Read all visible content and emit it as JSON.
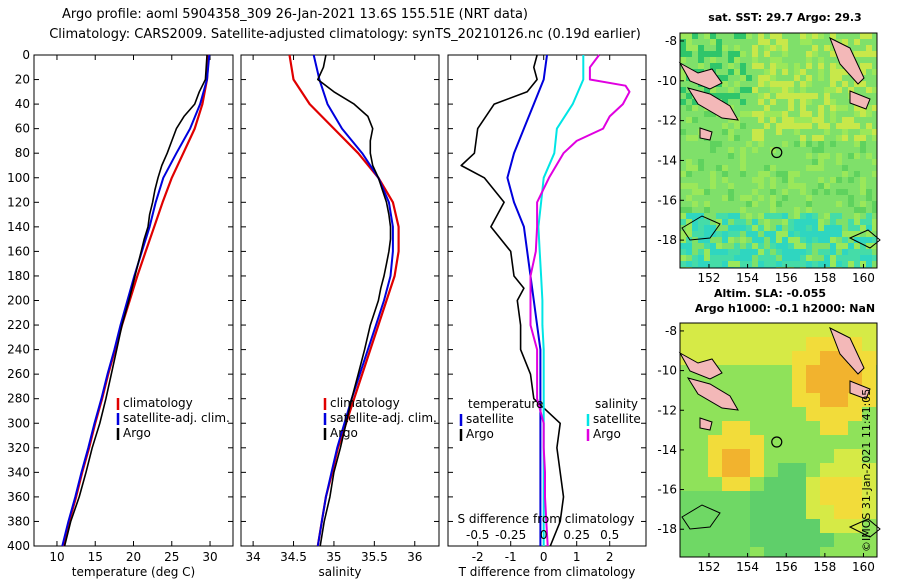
{
  "header": {
    "line1": "Argo profile: aoml 5904358_309 26-Jan-2021 13.6S 155.51E (NRT data)",
    "line2": "Climatology: CARS2009. Satellite-adjusted climatology: synTS_20210126.nc (0.19d earlier)"
  },
  "colors": {
    "climatology": "#e00000",
    "satellite": "#0000dd",
    "argo": "#000000",
    "sat_salinity": "#00e5e5",
    "argo_salinity": "#e000e0"
  },
  "chart_data": [
    {
      "type": "line",
      "name": "temperature",
      "xlabel": "temperature (deg C)",
      "ylabel": "depth",
      "xlim": [
        7,
        33
      ],
      "ylim": [
        0,
        400
      ],
      "xticks": [
        10,
        15,
        20,
        25,
        30
      ],
      "yticks": [
        0,
        20,
        40,
        60,
        80,
        100,
        120,
        140,
        160,
        180,
        200,
        220,
        240,
        260,
        280,
        300,
        320,
        340,
        360,
        380,
        400
      ],
      "legend": [
        "climatology",
        "satellite-adj. clim.",
        "Argo"
      ],
      "series": [
        {
          "name": "climatology",
          "depth": [
            0,
            20,
            40,
            60,
            80,
            100,
            120,
            140,
            160,
            180,
            200,
            220,
            240,
            260,
            280,
            300,
            320,
            340,
            360,
            380,
            400
          ],
          "values": [
            29.8,
            29.6,
            29.0,
            28.0,
            26.5,
            25.0,
            23.8,
            22.7,
            21.6,
            20.5,
            19.5,
            18.5,
            17.6,
            16.7,
            15.9,
            15.0,
            14.2,
            13.3,
            12.5,
            11.6,
            10.8
          ]
        },
        {
          "name": "satellite-adj. clim.",
          "depth": [
            0,
            20,
            40,
            60,
            80,
            100,
            120,
            140,
            160,
            180,
            200,
            220,
            240,
            260,
            280,
            300,
            320,
            340,
            360,
            380,
            400
          ],
          "values": [
            29.9,
            29.6,
            28.7,
            27.4,
            25.6,
            23.9,
            22.9,
            22.1,
            21.1,
            20.1,
            19.2,
            18.3,
            17.5,
            16.6,
            15.8,
            14.9,
            14.1,
            13.2,
            12.4,
            11.5,
            10.7
          ]
        },
        {
          "name": "Argo",
          "depth": [
            0,
            10,
            20,
            30,
            40,
            50,
            60,
            70,
            80,
            90,
            100,
            110,
            120,
            130,
            140,
            150,
            160,
            170,
            180,
            190,
            200,
            220,
            240,
            260,
            280,
            300,
            320,
            340,
            360,
            380,
            400
          ],
          "values": [
            29.6,
            29.5,
            29.4,
            28.6,
            28.0,
            26.6,
            25.6,
            25.0,
            24.4,
            23.7,
            23.2,
            22.8,
            22.5,
            22.1,
            21.9,
            21.4,
            21.0,
            20.6,
            20.2,
            19.8,
            19.4,
            18.5,
            17.8,
            17.1,
            16.4,
            15.6,
            14.6,
            13.8,
            12.9,
            11.8,
            11.0
          ]
        }
      ]
    },
    {
      "type": "line",
      "name": "salinity",
      "xlabel": "salinity",
      "ylabel": "depth",
      "xlim": [
        33.85,
        36.3
      ],
      "ylim": [
        0,
        400
      ],
      "xticks": [
        34,
        34.5,
        35,
        35.5,
        36
      ],
      "xtick_labels": [
        "34",
        "34.5",
        "35",
        "35.5",
        "36"
      ],
      "legend": [
        "climatology",
        "satellite-adj. clim.",
        "Argo"
      ],
      "series": [
        {
          "name": "climatology",
          "depth": [
            0,
            20,
            40,
            60,
            80,
            100,
            120,
            140,
            160,
            180,
            200,
            220,
            240,
            260,
            280,
            300,
            320,
            340,
            360,
            380,
            400
          ],
          "values": [
            34.45,
            34.5,
            34.7,
            35.0,
            35.3,
            35.55,
            35.73,
            35.8,
            35.8,
            35.75,
            35.65,
            35.55,
            35.45,
            35.35,
            35.25,
            35.15,
            35.05,
            34.98,
            34.9,
            34.85,
            34.8
          ]
        },
        {
          "name": "satellite-adj. clim.",
          "depth": [
            0,
            20,
            40,
            60,
            80,
            100,
            120,
            140,
            160,
            180,
            200,
            220,
            240,
            260,
            280,
            300,
            320,
            340,
            360,
            380,
            400
          ],
          "values": [
            34.75,
            34.82,
            34.92,
            35.1,
            35.35,
            35.55,
            35.68,
            35.73,
            35.73,
            35.7,
            35.62,
            35.52,
            35.42,
            35.32,
            35.22,
            35.13,
            35.04,
            34.97,
            34.9,
            34.85,
            34.8
          ]
        },
        {
          "name": "Argo",
          "depth": [
            0,
            10,
            20,
            30,
            40,
            50,
            60,
            70,
            80,
            90,
            100,
            110,
            120,
            130,
            140,
            150,
            160,
            170,
            180,
            190,
            200,
            220,
            240,
            260,
            280,
            300,
            320,
            340,
            360,
            380,
            400
          ],
          "values": [
            34.9,
            34.87,
            34.8,
            35.0,
            35.25,
            35.42,
            35.48,
            35.45,
            35.45,
            35.48,
            35.55,
            35.6,
            35.65,
            35.68,
            35.7,
            35.7,
            35.68,
            35.65,
            35.62,
            35.58,
            35.55,
            35.45,
            35.38,
            35.3,
            35.22,
            35.15,
            35.08,
            35.0,
            34.95,
            34.88,
            34.83
          ]
        }
      ]
    },
    {
      "type": "line",
      "name": "difference",
      "xlabel": "T difference from climatology",
      "secondary_xlabel": "S difference from climatology",
      "ylabel": "depth",
      "xlim": [
        -2.9,
        3.1
      ],
      "ylim": [
        0,
        400
      ],
      "xticks": [
        -2,
        -1,
        0,
        1,
        2
      ],
      "secondary_xticks": [
        -0.5,
        -0.25,
        0,
        0.25,
        0.5
      ],
      "secondary_xtick_labels": [
        "-0.5",
        "-0.25",
        "0",
        "0.25",
        "0.5"
      ],
      "legend_temperature_title": "temperature",
      "legend_salinity_title": "salinity",
      "legend_labels": [
        "satellite",
        "Argo",
        "satellite",
        "Argo"
      ],
      "series": [
        {
          "name": "temperature satellite",
          "depth": [
            0,
            20,
            40,
            60,
            80,
            100,
            120,
            140,
            160,
            180,
            200,
            220,
            240,
            260,
            280,
            300,
            320,
            340,
            360,
            380,
            400
          ],
          "values": [
            0.1,
            0.0,
            -0.3,
            -0.6,
            -0.9,
            -1.1,
            -0.9,
            -0.6,
            -0.5,
            -0.4,
            -0.3,
            -0.2,
            -0.1,
            -0.1,
            -0.1,
            -0.1,
            -0.1,
            -0.1,
            -0.1,
            -0.1,
            -0.1
          ]
        },
        {
          "name": "temperature Argo",
          "depth": [
            0,
            10,
            20,
            30,
            40,
            60,
            80,
            90,
            100,
            120,
            140,
            160,
            180,
            190,
            200,
            220,
            240,
            260,
            280,
            300,
            320,
            340,
            360,
            380,
            400
          ],
          "values": [
            -0.2,
            -0.3,
            -0.2,
            -0.5,
            -1.5,
            -2.0,
            -2.1,
            -2.5,
            -1.8,
            -1.2,
            -1.6,
            -1.0,
            -0.9,
            -0.6,
            -0.8,
            -0.7,
            -0.7,
            -0.4,
            -0.3,
            0.5,
            0.4,
            0.5,
            0.6,
            0.5,
            0.2
          ]
        },
        {
          "name": "salinity satellite",
          "depth": [
            0,
            20,
            40,
            60,
            80,
            100,
            120,
            140,
            160,
            180,
            200,
            220,
            240,
            260,
            280,
            300,
            320,
            340,
            360,
            380,
            400
          ],
          "values": [
            0.3,
            0.3,
            0.22,
            0.1,
            0.08,
            0.0,
            -0.02,
            -0.04,
            -0.03,
            -0.02,
            -0.01,
            -0.01,
            0.0,
            0.0,
            0.0,
            0.0,
            0.0,
            0.0,
            0.0,
            0.0,
            0.0
          ]
        },
        {
          "name": "salinity Argo",
          "depth": [
            0,
            10,
            20,
            25,
            30,
            40,
            50,
            60,
            70,
            80,
            100,
            120,
            140,
            160,
            180,
            200,
            220,
            240,
            260,
            280,
            300,
            320,
            340,
            360,
            380,
            400
          ],
          "values": [
            0.42,
            0.35,
            0.35,
            0.62,
            0.65,
            0.6,
            0.5,
            0.45,
            0.25,
            0.15,
            0.04,
            -0.05,
            -0.05,
            -0.06,
            -0.1,
            -0.1,
            -0.1,
            -0.05,
            -0.05,
            -0.05,
            0.0,
            0.0,
            0.01,
            0.01,
            0.02,
            0.03
          ]
        }
      ]
    }
  ],
  "maps": {
    "sst": {
      "title": "sat. SST: 29.7 Argo: 29.3",
      "xticks": [
        "152",
        "154",
        "156",
        "158",
        "160"
      ],
      "yticks": [
        "-8",
        "-10",
        "-12",
        "-14",
        "-16",
        "-18"
      ]
    },
    "sla": {
      "title_line1": "Altim. SLA: -0.055",
      "title_line2": "Argo h1000: -0.1 h2000: NaN",
      "xticks": [
        "152",
        "154",
        "156",
        "158",
        "160"
      ],
      "yticks": [
        "-8",
        "-10",
        "-12",
        "-14",
        "-16",
        "-18"
      ]
    }
  },
  "credit": "©IMOS 31-Jan-2021 11:41:05"
}
